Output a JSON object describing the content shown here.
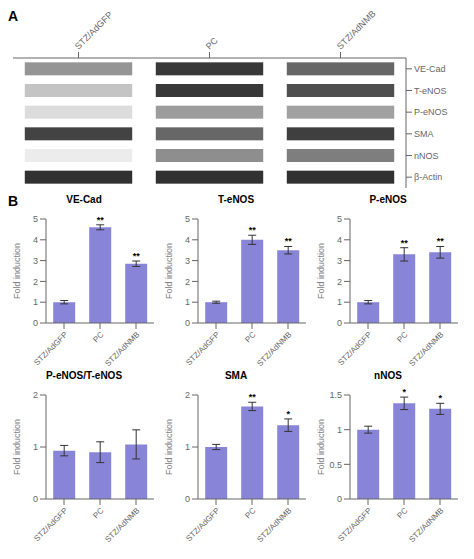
{
  "chart_data": [
    {
      "type": "heatmap",
      "categories": [
        "STZ/AdGFP",
        "PC",
        "STZ/AdNMB"
      ],
      "rows": [
        "VE-Cad",
        "T-eNOS",
        "P-eNOS",
        "SMA",
        "nNOS",
        "β-Actin"
      ],
      "cells": [
        [
          0.45,
          0.85,
          0.65
        ],
        [
          0.25,
          0.85,
          0.75
        ],
        [
          0.15,
          0.42,
          0.4
        ],
        [
          0.8,
          0.65,
          0.82
        ],
        [
          0.08,
          0.48,
          0.55
        ],
        [
          0.88,
          0.88,
          0.88
        ]
      ],
      "annotations": [
        {
          "text": "A"
        }
      ]
    },
    {
      "type": "bar",
      "title": "VE-Cad",
      "categories": [
        "STZ/AdGFP",
        "PC",
        "STZ/AdNMB"
      ],
      "values": [
        1.0,
        4.6,
        2.85
      ],
      "errors": [
        0.08,
        0.12,
        0.13
      ],
      "ylabel": "Fold induction",
      "ylim": [
        0,
        5
      ],
      "yticks": [
        0,
        1,
        2,
        3,
        4,
        5
      ],
      "color": "#8884d8",
      "annotations": [
        {
          "text": "B"
        },
        {
          "category": "PC",
          "text": "**"
        },
        {
          "category": "STZ/AdNMB",
          "text": "**"
        }
      ]
    },
    {
      "type": "bar",
      "title": "T-eNOS",
      "categories": [
        "STZ/AdGFP",
        "PC",
        "STZ/AdNMB"
      ],
      "values": [
        1.0,
        4.0,
        3.5
      ],
      "errors": [
        0.05,
        0.22,
        0.18
      ],
      "ylabel": "Fold induction",
      "ylim": [
        0,
        5
      ],
      "yticks": [
        0,
        1,
        2,
        3,
        4,
        5
      ],
      "color": "#8884d8",
      "annotations": [
        {
          "category": "PC",
          "text": "**"
        },
        {
          "category": "STZ/AdNMB",
          "text": "**"
        }
      ]
    },
    {
      "type": "bar",
      "title": "P-eNOS",
      "categories": [
        "STZ/AdGFP",
        "PC",
        "STZ/AdNMB"
      ],
      "values": [
        1.0,
        3.3,
        3.4
      ],
      "errors": [
        0.08,
        0.32,
        0.28
      ],
      "ylabel": "Fold induction",
      "ylim": [
        0,
        5
      ],
      "yticks": [
        0,
        1,
        2,
        3,
        4,
        5
      ],
      "color": "#8884d8",
      "annotations": [
        {
          "category": "PC",
          "text": "**"
        },
        {
          "category": "STZ/AdNMB",
          "text": "**"
        }
      ]
    },
    {
      "type": "bar",
      "title": "P-eNOS/T-eNOS",
      "categories": [
        "STZ/AdGFP",
        "PC",
        "STZ/AdNMB"
      ],
      "values": [
        0.93,
        0.9,
        1.05
      ],
      "errors": [
        0.1,
        0.2,
        0.28
      ],
      "ylabel": "Fold induction",
      "ylim": [
        0,
        2
      ],
      "yticks": [
        0,
        1,
        2
      ],
      "color": "#8884d8"
    },
    {
      "type": "bar",
      "title": "SMA",
      "categories": [
        "STZ/AdGFP",
        "PC",
        "STZ/AdNMB"
      ],
      "values": [
        1.0,
        1.78,
        1.42
      ],
      "errors": [
        0.05,
        0.08,
        0.12
      ],
      "ylabel": "Fold induction",
      "ylim": [
        0,
        2
      ],
      "yticks": [
        0,
        1,
        2
      ],
      "color": "#8884d8",
      "annotations": [
        {
          "category": "PC",
          "text": "**"
        },
        {
          "category": "STZ/AdNMB",
          "text": "*"
        }
      ]
    },
    {
      "type": "bar",
      "title": "nNOS",
      "categories": [
        "STZ/AdGFP",
        "PC",
        "STZ/AdNMB"
      ],
      "values": [
        1.0,
        1.38,
        1.3
      ],
      "errors": [
        0.05,
        0.09,
        0.08
      ],
      "ylabel": "Fold induction",
      "ylim": [
        0,
        1.5
      ],
      "yticks": [
        0,
        0.5,
        1,
        1.5
      ],
      "color": "#8884d8",
      "annotations": [
        {
          "category": "PC",
          "text": "*"
        },
        {
          "category": "STZ/AdNMB",
          "text": "*"
        }
      ]
    }
  ]
}
